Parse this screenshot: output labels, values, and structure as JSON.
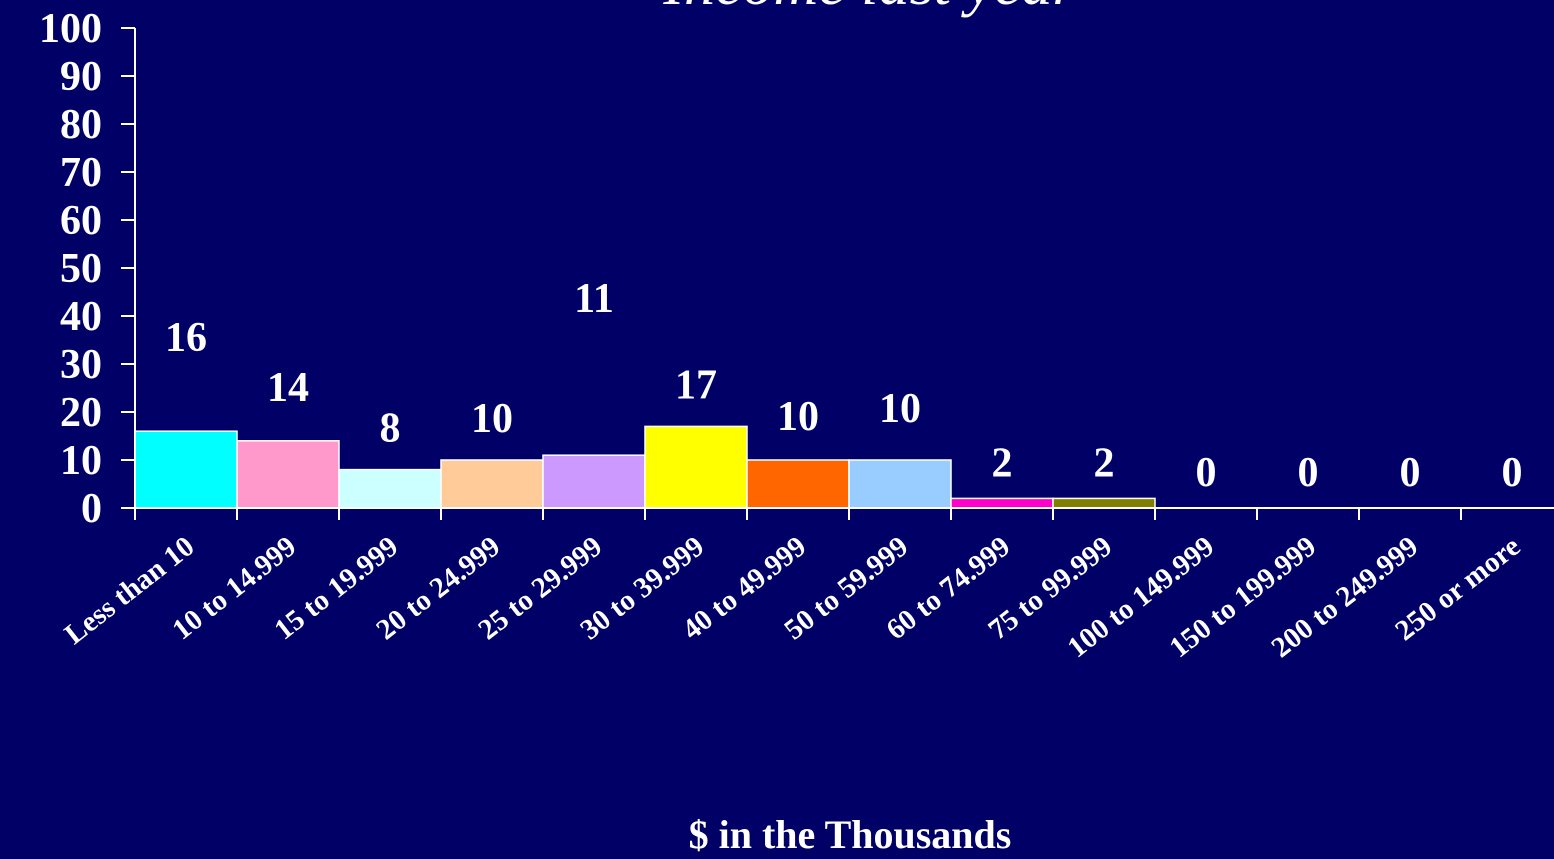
{
  "chart_data": {
    "type": "bar",
    "title": "Income last year",
    "xlabel": "$ in the Thousands",
    "ylabel": "",
    "ylim": [
      0,
      100
    ],
    "yticks": [
      0,
      10,
      20,
      30,
      40,
      50,
      60,
      70,
      80,
      90,
      100
    ],
    "categories": [
      "Less than 10",
      "10 to 14.999",
      "15 to 19.999",
      "20 to 24.999",
      "25 to 29.999",
      "30 to 39.999",
      "40 to 49.999",
      "50 to 59.999",
      "60 to 74.999",
      "75 to 99.999",
      "100 to 149.999",
      "150 to 199.999",
      "200 to 249.999",
      "250 or more"
    ],
    "values": [
      16,
      14,
      8,
      10,
      11,
      17,
      10,
      10,
      2,
      2,
      0,
      0,
      0,
      0
    ],
    "bar_colors": [
      "#00ffff",
      "#ff99cc",
      "#ccffff",
      "#ffcc99",
      "#cc99ff",
      "#ffff00",
      "#ff6600",
      "#99ccff",
      "#ff00cc",
      "#808000",
      "#000066",
      "#000066",
      "#000066",
      "#000066"
    ],
    "background": "#000066",
    "text_color": "#ffffff",
    "grid": false,
    "legend": "none"
  }
}
